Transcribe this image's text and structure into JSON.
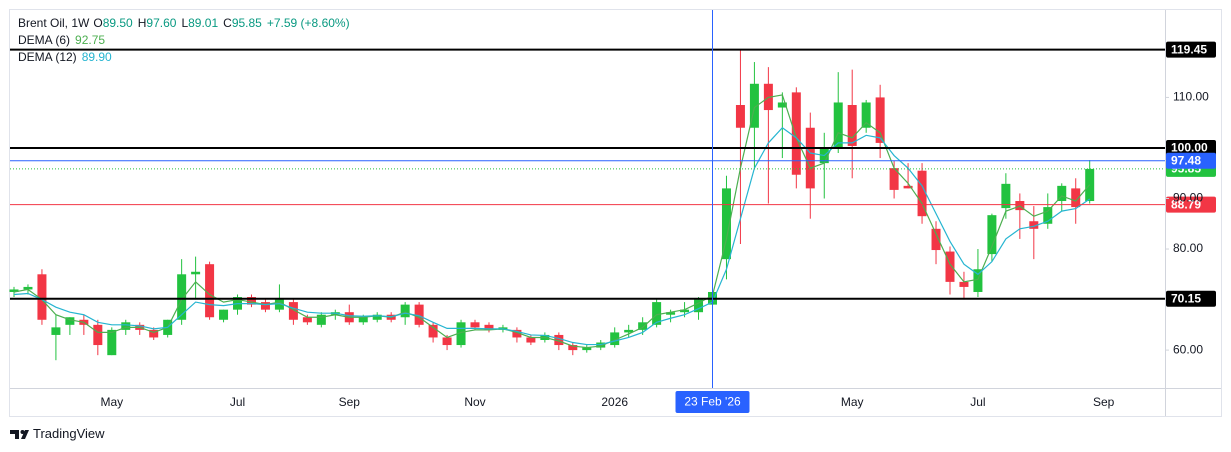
{
  "chart_data": {
    "type": "candlestick",
    "symbol": "Brent Oil, 1W",
    "ohlc_letters": [
      "O",
      "H",
      "L",
      "C"
    ],
    "ohlc_labels": [
      "89.50",
      "97.60",
      "89.01",
      "95.85"
    ],
    "change_label": "+7.59 (+8.60%)",
    "up_color": "#22c23f",
    "down_color": "#f23645",
    "categories": [
      null,
      null,
      null,
      null,
      null,
      null,
      null,
      "May",
      null,
      null,
      null,
      null,
      null,
      null,
      null,
      null,
      "Jul",
      null,
      null,
      null,
      null,
      null,
      null,
      null,
      "Sep",
      null,
      null,
      null,
      null,
      null,
      null,
      null,
      null,
      "Nov",
      null,
      null,
      null,
      null,
      null,
      null,
      null,
      null,
      null,
      "2026",
      null,
      null,
      null,
      null,
      null,
      null,
      null,
      null,
      null,
      null,
      null,
      null,
      null,
      null,
      null,
      null,
      "May",
      null,
      null,
      null,
      null,
      null,
      null,
      null,
      null,
      "Jul",
      null,
      null,
      null,
      null,
      null,
      null,
      null,
      null,
      "Sep"
    ],
    "open": [
      71.5,
      72,
      75,
      63,
      65,
      66,
      65,
      59,
      64,
      65,
      64,
      63,
      66,
      75,
      77,
      66,
      68,
      70.5,
      69.5,
      68,
      69.5,
      66.5,
      65,
      67,
      67.5,
      65.5,
      66,
      67,
      66.5,
      69,
      65,
      62.5,
      61,
      65.5,
      65,
      64,
      64,
      62.5,
      62,
      63,
      61,
      60,
      60.5,
      61,
      63.5,
      64,
      65,
      67,
      67.5,
      67.5,
      69,
      78,
      108.5,
      104,
      112.7,
      108,
      111,
      104,
      97,
      100,
      108.5,
      104,
      110,
      96,
      92.5,
      95.5,
      84,
      79.5,
      73.5,
      71.5,
      79,
      88.1,
      89.5,
      85.5,
      85,
      89.5,
      92,
      89.5,
      null
    ],
    "high": [
      72.5,
      73,
      76,
      67,
      66.5,
      67,
      66,
      64.5,
      66,
      65.5,
      64.5,
      66,
      78,
      78.5,
      77.5,
      68,
      71,
      71,
      70,
      73,
      70,
      67,
      67.5,
      68,
      69,
      67,
      67.5,
      67.5,
      69.5,
      69.5,
      65.5,
      63,
      66,
      66,
      65.5,
      65,
      64.5,
      63,
      63.5,
      63.5,
      61.5,
      61,
      62,
      64.5,
      65,
      66.5,
      70,
      68,
      69.5,
      70.5,
      72,
      94.5,
      119.5,
      117,
      116,
      111,
      112,
      107,
      103,
      115,
      115.5,
      109.5,
      112.5,
      97.5,
      97,
      97,
      85.5,
      80.5,
      75.5,
      80,
      87,
      95,
      91,
      88.5,
      91,
      93,
      94,
      97.6,
      null
    ],
    "low": [
      70.5,
      71,
      65,
      58,
      63,
      63,
      59,
      59,
      63,
      63,
      62,
      62.5,
      65,
      70,
      66,
      65.5,
      67,
      68.5,
      67.5,
      67.5,
      65,
      65,
      64.5,
      66,
      65,
      65,
      65.5,
      65.5,
      65,
      64.5,
      61.5,
      60,
      60.5,
      64,
      63.5,
      63.5,
      61.5,
      61,
      61.5,
      60,
      59,
      59.5,
      60,
      60.5,
      62.5,
      63,
      64.5,
      65.5,
      66.5,
      66,
      68.5,
      74,
      81,
      96,
      89,
      98,
      92,
      86,
      90,
      99,
      94,
      103,
      98,
      90,
      92,
      85,
      77,
      71,
      70,
      70.5,
      77.5,
      86,
      82,
      78,
      84,
      87.5,
      85,
      89.01,
      null
    ],
    "close": [
      72,
      72.5,
      66,
      64.5,
      66.5,
      65,
      61,
      64,
      65.5,
      64,
      62.5,
      66,
      75,
      75.5,
      66.5,
      68,
      70.5,
      69,
      68,
      70,
      66,
      65.5,
      67,
      67.5,
      65.5,
      66.5,
      67,
      66,
      69,
      65,
      62.5,
      61,
      65.5,
      64.5,
      64,
      64.5,
      62.5,
      61.5,
      63,
      61,
      60,
      60.5,
      61.5,
      63.5,
      64,
      65.5,
      69.5,
      67.5,
      68,
      70,
      71.5,
      92,
      104,
      112.7,
      107.5,
      109,
      94.7,
      92,
      100,
      109,
      100.4,
      109,
      101,
      91.7,
      92,
      86.5,
      79.8,
      73.5,
      72.5,
      76,
      86.7,
      92.9,
      87.7,
      84,
      88.3,
      92.5,
      88.3,
      95.85,
      null
    ],
    "series": [
      {
        "name": "DEMA (6)",
        "color": "#4caf50",
        "last_label": "92.75",
        "values": [
          71.5,
          72,
          70,
          67,
          66,
          65.5,
          63.5,
          63.5,
          64.5,
          64.5,
          63.5,
          64.5,
          70,
          73.5,
          71,
          69.5,
          70,
          69.5,
          69,
          69.5,
          68,
          66.5,
          66.5,
          67,
          66.5,
          66.5,
          66.8,
          66.5,
          67.5,
          66.5,
          64.5,
          62.5,
          63.5,
          64,
          64,
          64.2,
          63.5,
          62.5,
          62.5,
          61.8,
          60.8,
          60.5,
          60.8,
          62,
          63.2,
          64.5,
          67,
          67.5,
          68,
          69.3,
          70.8,
          82,
          96,
          108,
          110,
          110.5,
          102,
          96,
          97,
          103,
          102,
          105,
          103,
          96,
          93,
          89,
          83,
          77,
          73.5,
          74,
          80.5,
          87.5,
          88.5,
          86.5,
          87.5,
          90.5,
          89.5,
          92.75,
          null
        ]
      },
      {
        "name": "DEMA (12)",
        "color": "#26b5d1",
        "last_label": "89.90",
        "values": [
          71,
          71.2,
          70,
          68.5,
          67.5,
          67,
          65.5,
          65,
          65,
          64.8,
          64.2,
          64.5,
          67,
          69.5,
          69,
          68.8,
          69.2,
          69.2,
          69,
          69.2,
          68.3,
          67.5,
          67.3,
          67.3,
          66.8,
          66.7,
          66.8,
          66.6,
          67.3,
          66.8,
          65.5,
          64.3,
          64.3,
          64.3,
          64.2,
          64.2,
          63.7,
          63,
          62.9,
          62.3,
          61.5,
          61.1,
          61.1,
          61.8,
          62.5,
          63.5,
          65.5,
          66.3,
          67,
          68.2,
          69.5,
          76,
          86,
          96,
          101,
          104,
          102,
          99,
          98.5,
          101,
          101,
          102.5,
          102,
          98.5,
          96,
          92.5,
          87,
          81.5,
          77,
          75,
          77.5,
          82,
          84,
          84.5,
          85.5,
          87.5,
          88,
          89.9,
          null
        ]
      }
    ],
    "ylim": [
      52.5,
      127.3
    ],
    "yticks": [
      {
        "value": 60,
        "label": "60.00"
      },
      {
        "value": 80,
        "label": "80.00"
      },
      {
        "value": 90,
        "label": "90.00"
      },
      {
        "value": 110,
        "label": "110.00"
      }
    ],
    "levels": [
      {
        "value": 119.45,
        "label": "119.45",
        "color": "#000000",
        "style": "solid"
      },
      {
        "value": 100,
        "label": "100.00",
        "color": "#000000",
        "style": "solid"
      },
      {
        "value": 95.85,
        "label": "95.85",
        "color": "#22c23f",
        "style": "dotted"
      },
      {
        "value": 88.79,
        "label": "88.79",
        "color": "#f23645",
        "style": "thin"
      },
      {
        "value": 70.15,
        "label": "70.15",
        "color": "#000000",
        "style": "solid"
      }
    ],
    "crosshair": {
      "value": 97.48,
      "label": "97.48",
      "x_index": 50,
      "x_label": "23 Feb '26",
      "color": "#2962ff"
    },
    "brand": "TradingView"
  }
}
